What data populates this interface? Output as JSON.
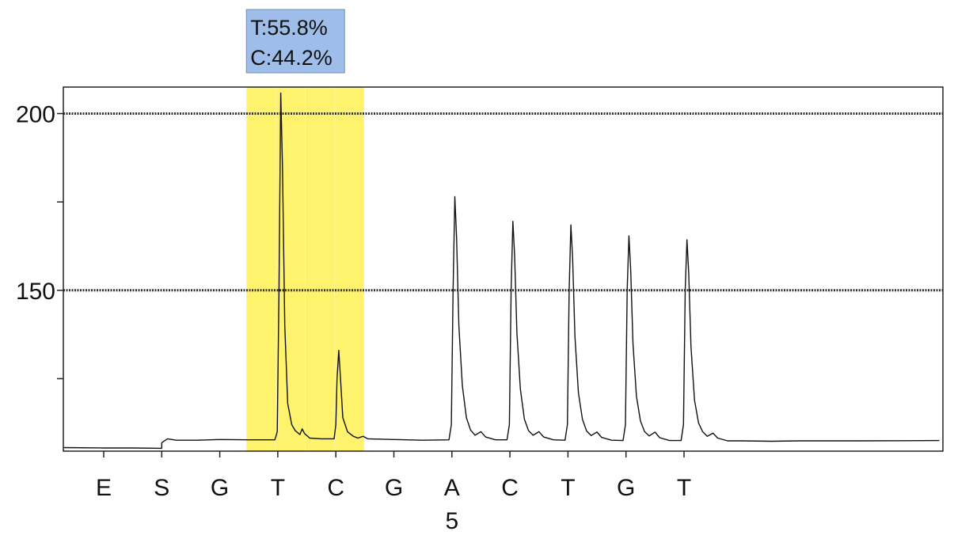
{
  "chart_data": {
    "type": "line",
    "title": "",
    "xlabel": "",
    "ylabel": "",
    "ylim": [
      104.5,
      207.5
    ],
    "y_ticks_major": [
      150,
      200
    ],
    "y_ticks_minor": [
      125,
      175
    ],
    "y_tick_labels": [
      "150",
      "200"
    ],
    "gridlines_dashed": [
      150,
      200
    ],
    "dispensation_order": [
      "E",
      "S",
      "G",
      "T",
      "C",
      "G",
      "A",
      "C",
      "T",
      "G",
      "T"
    ],
    "position_marker": {
      "dispensation_index": 6,
      "label": "5"
    },
    "highlight_region": {
      "from_index": 2.5,
      "to_index": 4.5,
      "color": "#fff36e"
    },
    "annotation": {
      "lines": [
        "T:55.8%",
        "C:44.2%"
      ],
      "background": "#9ebde8"
    },
    "series": [
      {
        "color": "#111111",
        "points": [
          [
            -0.7,
            105.5
          ],
          [
            0.0,
            105.4
          ],
          [
            0.5,
            105.4
          ],
          [
            1.0,
            105.3
          ],
          [
            1.0,
            106.9
          ],
          [
            1.1,
            108.0
          ],
          [
            1.25,
            107.6
          ],
          [
            1.6,
            107.6
          ],
          [
            2.0,
            107.8
          ],
          [
            2.5,
            107.7
          ],
          [
            2.95,
            107.7
          ],
          [
            2.99,
            110
          ],
          [
            3.02,
            150
          ],
          [
            3.05,
            205.8
          ],
          [
            3.08,
            185
          ],
          [
            3.12,
            140
          ],
          [
            3.17,
            118
          ],
          [
            3.24,
            112
          ],
          [
            3.3,
            110.3
          ],
          [
            3.38,
            109.2
          ],
          [
            3.42,
            110.8
          ],
          [
            3.46,
            109.5
          ],
          [
            3.55,
            108.2
          ],
          [
            3.75,
            108.0
          ],
          [
            3.97,
            108.0
          ],
          [
            4.0,
            112
          ],
          [
            4.02,
            125
          ],
          [
            4.05,
            133.0
          ],
          [
            4.08,
            125
          ],
          [
            4.12,
            114
          ],
          [
            4.2,
            110
          ],
          [
            4.3,
            108.7
          ],
          [
            4.38,
            108.2
          ],
          [
            4.47,
            108.7
          ],
          [
            4.55,
            108.0
          ],
          [
            5.0,
            107.8
          ],
          [
            5.5,
            107.6
          ],
          [
            5.95,
            107.7
          ],
          [
            5.99,
            112
          ],
          [
            6.02,
            150
          ],
          [
            6.05,
            176.5
          ],
          [
            6.08,
            165
          ],
          [
            6.12,
            140
          ],
          [
            6.18,
            123
          ],
          [
            6.25,
            114
          ],
          [
            6.32,
            110.5
          ],
          [
            6.4,
            109.0
          ],
          [
            6.5,
            110.0
          ],
          [
            6.58,
            108.5
          ],
          [
            6.75,
            107.7
          ],
          [
            6.95,
            107.7
          ],
          [
            6.99,
            112
          ],
          [
            7.02,
            150
          ],
          [
            7.05,
            169.5
          ],
          [
            7.08,
            160
          ],
          [
            7.12,
            138
          ],
          [
            7.18,
            122
          ],
          [
            7.25,
            113.5
          ],
          [
            7.32,
            110.3
          ],
          [
            7.4,
            109.0
          ],
          [
            7.5,
            110.0
          ],
          [
            7.58,
            108.5
          ],
          [
            7.75,
            107.7
          ],
          [
            7.95,
            107.6
          ],
          [
            7.99,
            112
          ],
          [
            8.02,
            150
          ],
          [
            8.05,
            168.5
          ],
          [
            8.08,
            159
          ],
          [
            8.12,
            137
          ],
          [
            8.18,
            121
          ],
          [
            8.25,
            113.5
          ],
          [
            8.32,
            110.2
          ],
          [
            8.4,
            108.9
          ],
          [
            8.5,
            109.9
          ],
          [
            8.58,
            108.4
          ],
          [
            8.75,
            107.6
          ],
          [
            8.95,
            107.5
          ],
          [
            8.99,
            112
          ],
          [
            9.02,
            150
          ],
          [
            9.05,
            165.4
          ],
          [
            9.08,
            156
          ],
          [
            9.12,
            135
          ],
          [
            9.18,
            120
          ],
          [
            9.25,
            113
          ],
          [
            9.32,
            110
          ],
          [
            9.4,
            108.8
          ],
          [
            9.5,
            109.9
          ],
          [
            9.58,
            108.3
          ],
          [
            9.75,
            107.5
          ],
          [
            9.95,
            107.5
          ],
          [
            9.99,
            112
          ],
          [
            10.02,
            150
          ],
          [
            10.05,
            164.3
          ],
          [
            10.08,
            155
          ],
          [
            10.12,
            134
          ],
          [
            10.18,
            119
          ],
          [
            10.25,
            112.5
          ],
          [
            10.32,
            110
          ],
          [
            10.4,
            108.7
          ],
          [
            10.5,
            109.6
          ],
          [
            10.58,
            108.2
          ],
          [
            10.75,
            107.4
          ],
          [
            11.0,
            107.4
          ],
          [
            11.5,
            107.3
          ],
          [
            12.0,
            107.4
          ],
          [
            13.0,
            107.4
          ],
          [
            14.4,
            107.5
          ]
        ]
      }
    ]
  }
}
